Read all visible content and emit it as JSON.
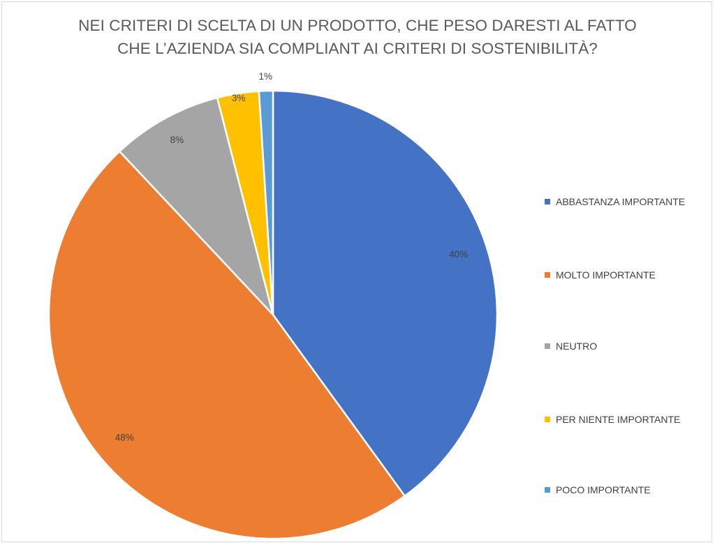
{
  "chart_data": {
    "type": "pie",
    "title_lines": [
      "NEI CRITERI DI SCELTA DI UN PRODOTTO, CHE PESO DARESTI AL FATTO",
      "CHE L’AZIENDA SIA COMPLIANT AI CRITERI DI SOSTENIBILITÀ?"
    ],
    "slices": [
      {
        "label": "ABBASTANZA IMPORTANTE",
        "value": 40,
        "display": "40%",
        "color": "#4472C4"
      },
      {
        "label": "MOLTO IMPORTANTE",
        "value": 48,
        "display": "48%",
        "color": "#ED7D31"
      },
      {
        "label": "NEUTRO",
        "value": 8,
        "display": "8%",
        "color": "#A5A5A5"
      },
      {
        "label": "PER NIENTE IMPORTANTE",
        "value": 3,
        "display": "3%",
        "color": "#FFC000"
      },
      {
        "label": "POCO IMPORTANTE",
        "value": 1,
        "display": "1%",
        "color": "#5B9BD5"
      }
    ],
    "legend_position": "right",
    "label_color": "#404040",
    "start_angle": "12 o'clock",
    "direction": "clockwise"
  }
}
